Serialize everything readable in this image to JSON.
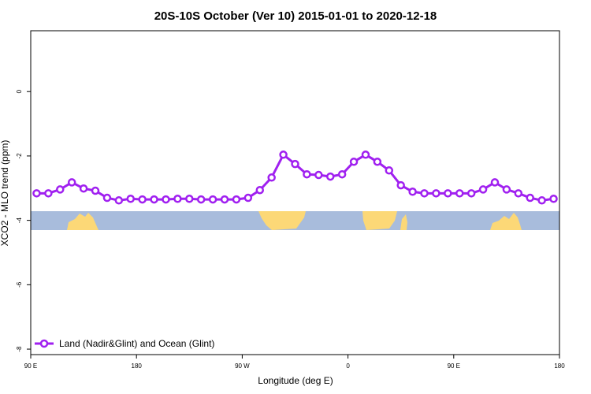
{
  "chart_data": {
    "type": "line",
    "title": "20S-10S October (Ver 10)   2015-01-01 to 2020-12-18",
    "x_label": "Longitude (deg E)",
    "y_label": "XCO2 - MLO trend (ppm)",
    "x": [
      95,
      105,
      115,
      125,
      135,
      145,
      155,
      165,
      175,
      185,
      195,
      205,
      215,
      225,
      235,
      245,
      255,
      265,
      275,
      285,
      295,
      305,
      315,
      325,
      335,
      345,
      355,
      365,
      375,
      385,
      395,
      405,
      415,
      425,
      435,
      445,
      455,
      465,
      475,
      485,
      495,
      505,
      515,
      525,
      535
    ],
    "series": [
      {
        "name": "Land (Nadir&Glint) and Ocean (Glint)",
        "color": "#a020f0",
        "values": [
          -3.16,
          -3.16,
          -3.04,
          -2.82,
          -3.01,
          -3.08,
          -3.3,
          -3.38,
          -3.33,
          -3.35,
          -3.35,
          -3.35,
          -3.33,
          -3.33,
          -3.35,
          -3.35,
          -3.35,
          -3.35,
          -3.3,
          -3.06,
          -2.67,
          -1.96,
          -2.25,
          -2.57,
          -2.59,
          -2.64,
          -2.57,
          -2.18,
          -1.96,
          -2.18,
          -2.45,
          -2.91,
          -3.11,
          -3.16,
          -3.16,
          -3.16,
          -3.16,
          -3.16,
          -3.04,
          -2.82,
          -3.04,
          -3.16,
          -3.3,
          -3.38,
          -3.33
        ]
      }
    ],
    "xlim": [
      90,
      540
    ],
    "xticks": [
      {
        "value": 90,
        "label": "90 E"
      },
      {
        "value": 180,
        "label": "180"
      },
      {
        "value": 270,
        "label": "90 W"
      },
      {
        "value": 360,
        "label": "0"
      },
      {
        "value": 450,
        "label": "90 E"
      },
      {
        "value": 540,
        "label": "180"
      }
    ],
    "ylim": [
      -8.17,
      1.89
    ],
    "yticks": [
      0,
      -2,
      -4,
      -6,
      -8
    ],
    "legend": "bottom-left"
  }
}
